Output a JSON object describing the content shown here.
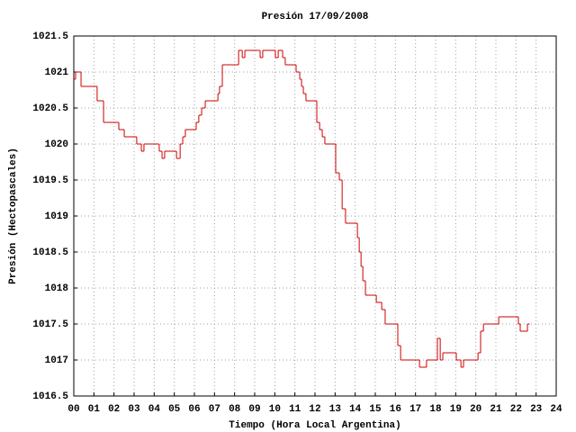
{
  "chart_data": {
    "type": "step",
    "title": "Presión 17/09/2008",
    "x_label": "Tiempo (Hora Local Argentina)",
    "y_label": "Presión (Hectopascales)",
    "xlim": [
      0,
      24
    ],
    "ylim": [
      1016.5,
      1021.5
    ],
    "xticks": [
      {
        "value": 0,
        "label": "00"
      },
      {
        "value": 1,
        "label": "01"
      },
      {
        "value": 2,
        "label": "02"
      },
      {
        "value": 3,
        "label": "03"
      },
      {
        "value": 4,
        "label": "04"
      },
      {
        "value": 5,
        "label": "05"
      },
      {
        "value": 6,
        "label": "06"
      },
      {
        "value": 7,
        "label": "07"
      },
      {
        "value": 8,
        "label": "08"
      },
      {
        "value": 9,
        "label": "09"
      },
      10,
      11,
      12,
      13,
      14,
      15,
      16,
      17,
      18,
      19,
      20,
      21,
      22,
      23,
      24
    ],
    "yticks": [
      1016.5,
      1017,
      1017.5,
      1018,
      1018.5,
      1019,
      1019.5,
      1020,
      1020.5,
      1021,
      1021.5
    ],
    "grid": true,
    "color": "#cc0000",
    "x": [
      0,
      0.09,
      0.36,
      1.16,
      1.48,
      2.24,
      2.51,
      3.13,
      3.36,
      3.49,
      4.25,
      4.39,
      4.52,
      5.11,
      5.29,
      5.42,
      5.55,
      6.09,
      6.22,
      6.36,
      6.54,
      7.17,
      7.25,
      7.39,
      8.2,
      8.38,
      8.51,
      9.27,
      9.4,
      10.03,
      10.17,
      10.39,
      10.52,
      11.06,
      11.24,
      11.33,
      11.42,
      11.55,
      12.09,
      12.23,
      12.36,
      12.49,
      13.03,
      13.21,
      13.35,
      13.52,
      14.11,
      14.2,
      14.29,
      14.38,
      14.51,
      15.05,
      15.32,
      15.49,
      16.12,
      16.26,
      17.2,
      17.55,
      18.09,
      18.23,
      18.36,
      19.03,
      19.26,
      19.39,
      20.11,
      20.24,
      20.38,
      21.14,
      22.12,
      22.21,
      22.57,
      22.66
    ],
    "values": [
      1020.9,
      1021.0,
      1020.8,
      1020.6,
      1020.3,
      1020.2,
      1020.1,
      1020.0,
      1019.9,
      1020.0,
      1019.9,
      1019.8,
      1019.9,
      1019.8,
      1020.0,
      1020.1,
      1020.2,
      1020.3,
      1020.4,
      1020.5,
      1020.6,
      1020.7,
      1020.8,
      1021.1,
      1021.3,
      1021.2,
      1021.3,
      1021.2,
      1021.3,
      1021.2,
      1021.3,
      1021.2,
      1021.1,
      1021.0,
      1020.9,
      1020.8,
      1020.7,
      1020.6,
      1020.3,
      1020.2,
      1020.1,
      1020.0,
      1019.6,
      1019.5,
      1019.1,
      1018.9,
      1018.7,
      1018.5,
      1018.3,
      1018.1,
      1017.9,
      1017.8,
      1017.7,
      1017.5,
      1017.2,
      1017.0,
      1016.9,
      1017.0,
      1017.3,
      1017.0,
      1017.1,
      1017.0,
      1016.9,
      1017.0,
      1017.1,
      1017.4,
      1017.5,
      1017.6,
      1017.5,
      1017.4,
      1017.5,
      1017.5
    ]
  }
}
